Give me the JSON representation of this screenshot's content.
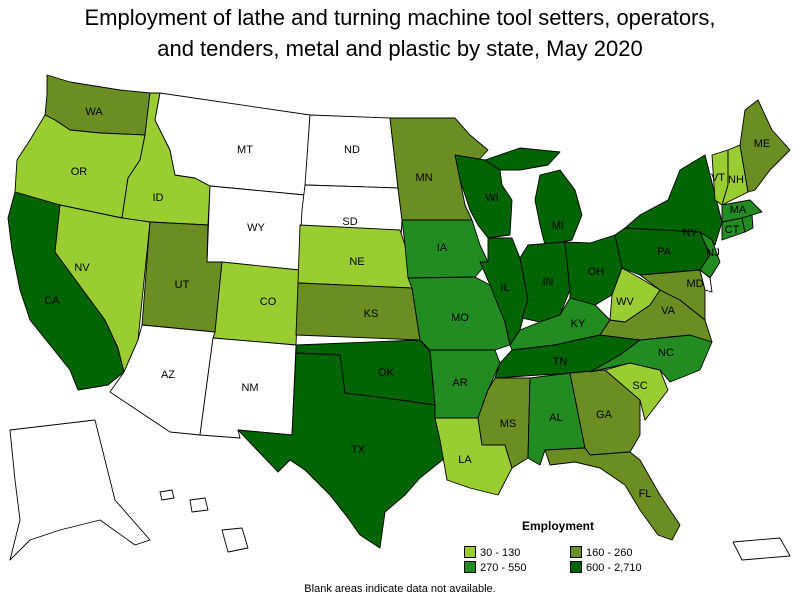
{
  "title": {
    "line1": "Employment of lathe and turning machine tool setters, operators,",
    "line2": "and tenders, metal and plastic by state, May 2020"
  },
  "legend": {
    "title": "Employment",
    "items": [
      {
        "label": "30 - 130",
        "color": "#9acd32"
      },
      {
        "label": "160 - 260",
        "color": "#6b8e23"
      },
      {
        "label": "270 - 550",
        "color": "#228b22"
      },
      {
        "label": "600 - 2,710",
        "color": "#006400"
      }
    ]
  },
  "note": "Blank areas indicate data not available.",
  "colors": {
    "no_data": "#ffffff",
    "tier1": "#9acd32",
    "tier2": "#6b8e23",
    "tier3": "#228b22",
    "tier4": "#006400"
  },
  "states": [
    {
      "abbr": "WA",
      "tier": 2
    },
    {
      "abbr": "OR",
      "tier": 1
    },
    {
      "abbr": "CA",
      "tier": 4
    },
    {
      "abbr": "ID",
      "tier": 1
    },
    {
      "abbr": "NV",
      "tier": 1
    },
    {
      "abbr": "MT",
      "tier": 0
    },
    {
      "abbr": "WY",
      "tier": 0
    },
    {
      "abbr": "UT",
      "tier": 2
    },
    {
      "abbr": "CO",
      "tier": 1
    },
    {
      "abbr": "AZ",
      "tier": 0
    },
    {
      "abbr": "NM",
      "tier": 0
    },
    {
      "abbr": "ND",
      "tier": 0
    },
    {
      "abbr": "SD",
      "tier": 0
    },
    {
      "abbr": "NE",
      "tier": 1
    },
    {
      "abbr": "KS",
      "tier": 2
    },
    {
      "abbr": "OK",
      "tier": 4
    },
    {
      "abbr": "TX",
      "tier": 4
    },
    {
      "abbr": "MN",
      "tier": 2
    },
    {
      "abbr": "IA",
      "tier": 3
    },
    {
      "abbr": "MO",
      "tier": 3
    },
    {
      "abbr": "AR",
      "tier": 3
    },
    {
      "abbr": "LA",
      "tier": 1
    },
    {
      "abbr": "WI",
      "tier": 4
    },
    {
      "abbr": "IL",
      "tier": 4
    },
    {
      "abbr": "MI",
      "tier": 4
    },
    {
      "abbr": "IN",
      "tier": 4
    },
    {
      "abbr": "OH",
      "tier": 4
    },
    {
      "abbr": "KY",
      "tier": 3
    },
    {
      "abbr": "TN",
      "tier": 4
    },
    {
      "abbr": "MS",
      "tier": 2
    },
    {
      "abbr": "AL",
      "tier": 3
    },
    {
      "abbr": "GA",
      "tier": 2
    },
    {
      "abbr": "FL",
      "tier": 2
    },
    {
      "abbr": "SC",
      "tier": 1
    },
    {
      "abbr": "NC",
      "tier": 3
    },
    {
      "abbr": "VA",
      "tier": 2
    },
    {
      "abbr": "WV",
      "tier": 1
    },
    {
      "abbr": "PA",
      "tier": 4
    },
    {
      "abbr": "NY",
      "tier": 4
    },
    {
      "abbr": "NJ",
      "tier": 3
    },
    {
      "abbr": "MD",
      "tier": 2
    },
    {
      "abbr": "DE",
      "tier": 0
    },
    {
      "abbr": "CT",
      "tier": 3
    },
    {
      "abbr": "MA",
      "tier": 3
    },
    {
      "abbr": "RI",
      "tier": 3
    },
    {
      "abbr": "VT",
      "tier": 1
    },
    {
      "abbr": "NH",
      "tier": 1
    },
    {
      "abbr": "ME",
      "tier": 2
    },
    {
      "abbr": "AK",
      "tier": 0
    },
    {
      "abbr": "HI",
      "tier": 0
    },
    {
      "abbr": "PR",
      "tier": 0
    }
  ]
}
